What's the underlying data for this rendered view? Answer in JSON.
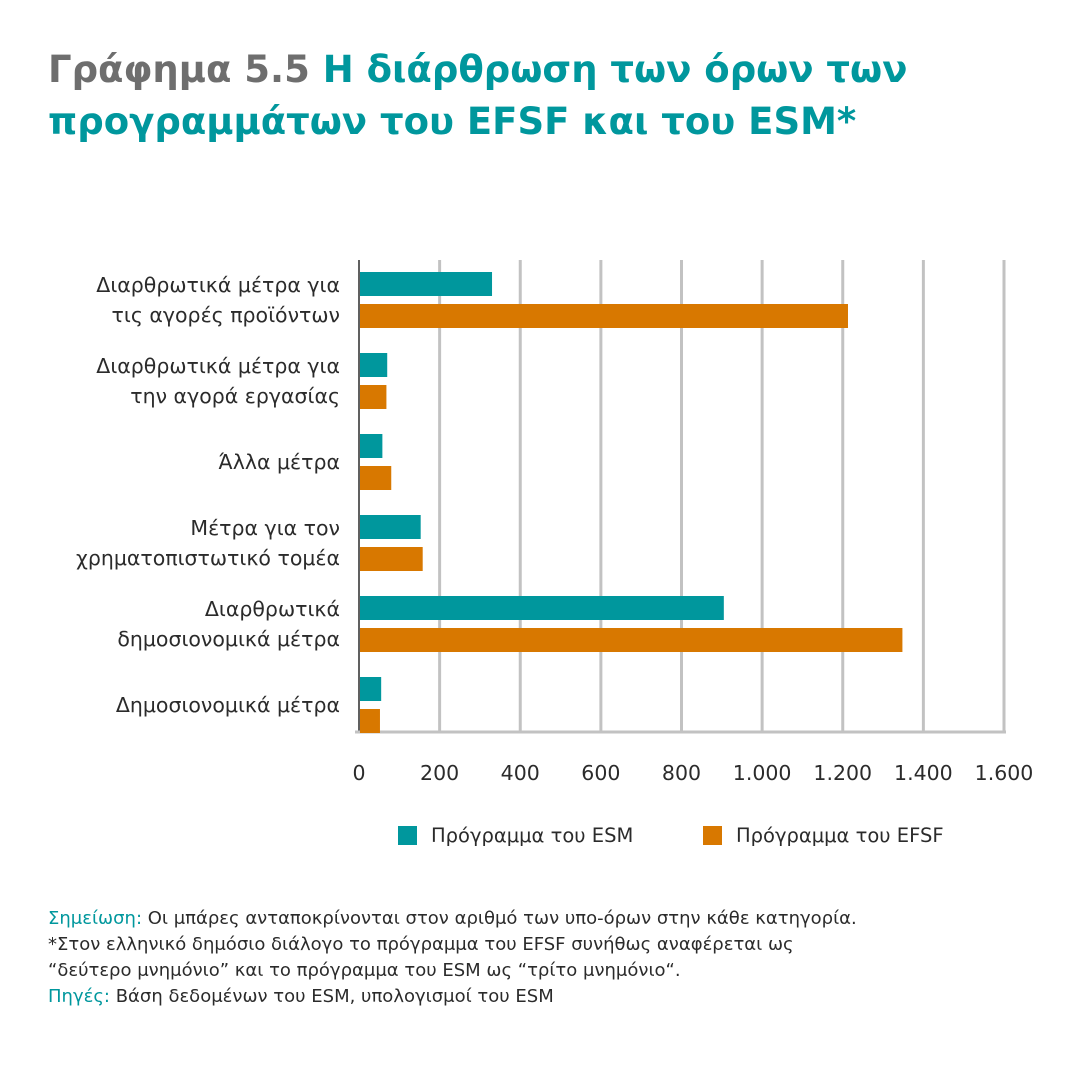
{
  "title": {
    "number": "Γράφημα 5.5",
    "text": "Η διάρθρωση των όρων των προγραμμάτων του EFSF και του ESM*"
  },
  "colors": {
    "esm": "#00979d",
    "efsf": "#d87800",
    "grid": "#c2c2c2"
  },
  "chart_data": {
    "type": "bar",
    "orientation": "horizontal",
    "categories": [
      [
        "Διαρθρωτικά μέτρα για",
        "τις αγορές προϊόντων"
      ],
      [
        "Διαρθρωτικά μέτρα για",
        "την αγορά εργασίας"
      ],
      [
        "Άλλα μέτρα"
      ],
      [
        "Μέτρα για τον",
        "χρηματοπιστωτικό τομέα"
      ],
      [
        "Διαρθρωτικά",
        "δημοσιονομικά μέτρα"
      ],
      [
        "Δημοσιονομικά μέτρα"
      ]
    ],
    "series": [
      {
        "name": "Πρόγραμμα του ESM",
        "color": "#00979d",
        "values": [
          330,
          70,
          58,
          153,
          905,
          55
        ]
      },
      {
        "name": "Πρόγραμμα του EFSF",
        "color": "#d87800",
        "values": [
          1213,
          68,
          80,
          158,
          1348,
          52
        ]
      }
    ],
    "xlim": [
      0,
      1600
    ],
    "ticks": [
      0,
      200,
      400,
      600,
      800,
      1000,
      1200,
      1400,
      1600
    ],
    "tick_labels": [
      "0",
      "200",
      "400",
      "600",
      "800",
      "1.000",
      "1.200",
      "1.400",
      "1.600"
    ],
    "grid": true,
    "legend_position": "bottom"
  },
  "notes": {
    "note_label": "Σημείωση:",
    "note_text": " Οι μπάρες ανταποκρίνονται στον αριθμό των υπο-όρων στην κάθε κατηγορία.",
    "asterisk_line1": "*Στον ελληνικό δημόσιο διάλογο το πρόγραμμα του EFSF συνήθως αναφέρεται ως",
    "asterisk_line2": "“δεύτερο μνημόνιο” και το πρόγραμμα του ESM ως “τρίτο μνημόνιο“.",
    "sources_label": "Πηγές:",
    "sources_text": " Βάση δεδομένων του ESM, υπολογισμοί του ESM"
  }
}
